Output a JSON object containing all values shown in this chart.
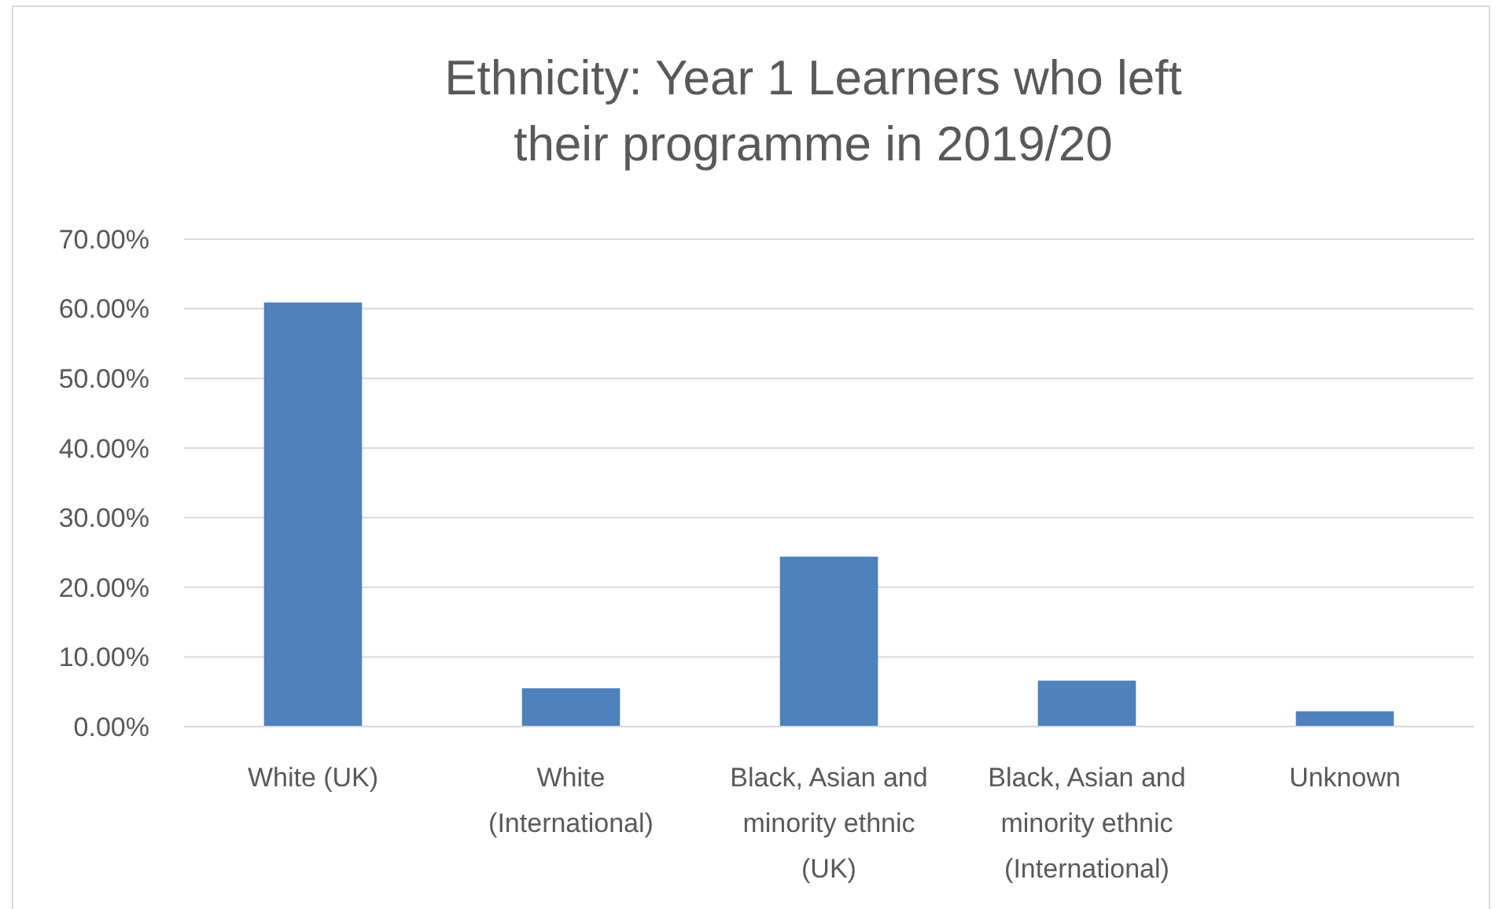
{
  "chart_data": {
    "type": "bar",
    "title": "Ethnicity: Year 1 Learners who left their programme in 2019/20",
    "categories": [
      "White (UK)",
      "White (International)",
      "Black, Asian and minority ethnic (UK)",
      "Black, Asian and minority ethnic (International)",
      "Unknown"
    ],
    "values": [
      60.9,
      5.5,
      24.4,
      6.6,
      2.2
    ],
    "color": "#4f81bd",
    "ylim": [
      0,
      70
    ],
    "yticks": [
      {
        "value": 0,
        "label": "0.00%"
      },
      {
        "value": 10,
        "label": "10.00%"
      },
      {
        "value": 20,
        "label": "20.00%"
      },
      {
        "value": 30,
        "label": "30.00%"
      },
      {
        "value": 40,
        "label": "40.00%"
      },
      {
        "value": 50,
        "label": "50.00%"
      },
      {
        "value": 60,
        "label": "60.00%"
      },
      {
        "value": 70,
        "label": "70.00%"
      }
    ],
    "grid": true
  }
}
